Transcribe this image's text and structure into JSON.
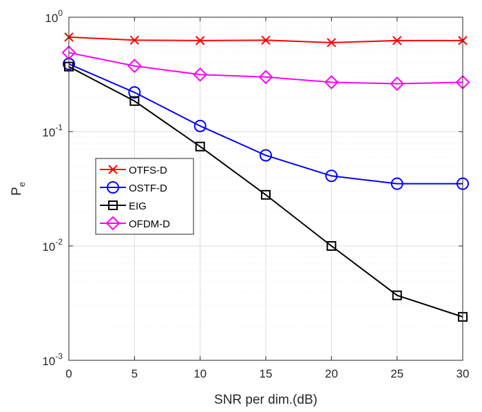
{
  "chart_data": {
    "type": "line",
    "yscale": "log",
    "title": "",
    "xlabel": "SNR per dim.(dB)",
    "ylabel": {
      "main": "P",
      "sub": "e"
    },
    "xlim": [
      0,
      30
    ],
    "ylim": [
      0.001,
      1
    ],
    "x_ticks": [
      0,
      5,
      10,
      15,
      20,
      25,
      30
    ],
    "y_ticks": [
      {
        "value": 0.001,
        "base": "10",
        "exp": "-3"
      },
      {
        "value": 0.01,
        "base": "10",
        "exp": "-2"
      },
      {
        "value": 0.1,
        "base": "10",
        "exp": "-1"
      },
      {
        "value": 1,
        "base": "10",
        "exp": "0"
      }
    ],
    "grid": true,
    "legend_position": "middle-left",
    "x": [
      0,
      5,
      10,
      15,
      20,
      25,
      30
    ],
    "series": [
      {
        "name": "OTFS-D",
        "color": "#ff0000",
        "marker": "x",
        "values": [
          0.67,
          0.63,
          0.625,
          0.63,
          0.6,
          0.625,
          0.625
        ]
      },
      {
        "name": "OSTF-D",
        "color": "#0000ff",
        "marker": "circle",
        "values": [
          0.39,
          0.22,
          0.112,
          0.062,
          0.041,
          0.035,
          0.035
        ]
      },
      {
        "name": "EIG",
        "color": "#000000",
        "marker": "square",
        "values": [
          0.37,
          0.185,
          0.074,
          0.028,
          0.01,
          0.0037,
          0.0024
        ]
      },
      {
        "name": "OFDM-D",
        "color": "#ff00ff",
        "marker": "diamond",
        "values": [
          0.49,
          0.375,
          0.315,
          0.3,
          0.27,
          0.262,
          0.27
        ]
      }
    ]
  }
}
